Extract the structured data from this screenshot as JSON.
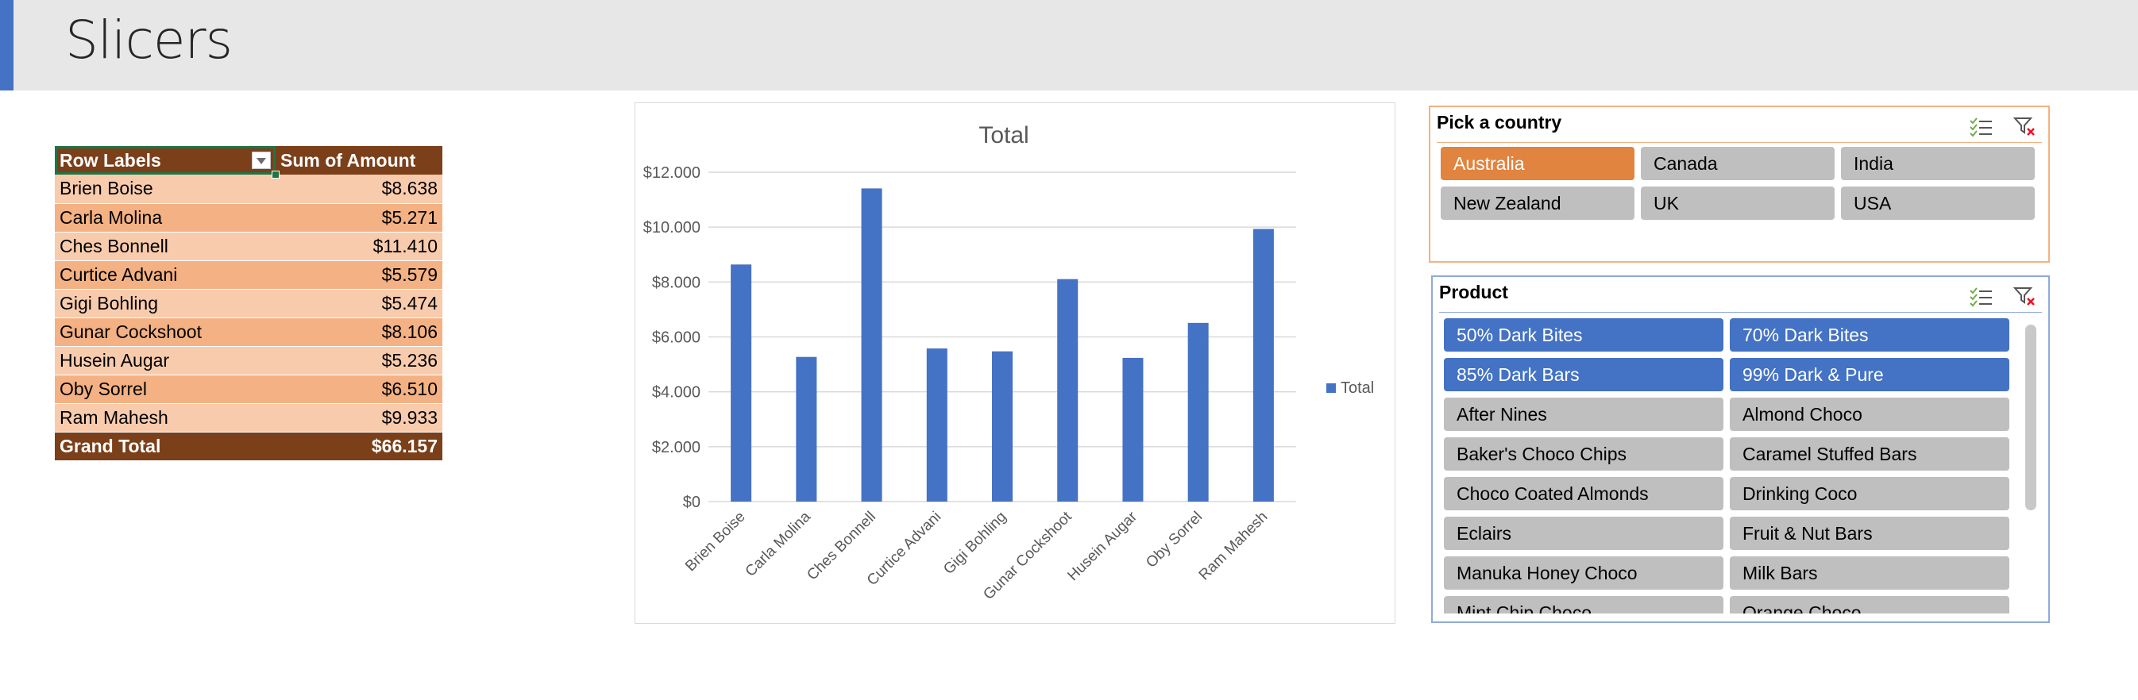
{
  "header": {
    "title": "Slicers",
    "accent_color": "#4472c4"
  },
  "pivot": {
    "header_row_labels": "Row Labels",
    "header_amount": "Sum of Amount",
    "rows": [
      {
        "label": "Brien Boise",
        "amount": "$8.638"
      },
      {
        "label": "Carla Molina",
        "amount": "$5.271"
      },
      {
        "label": "Ches Bonnell",
        "amount": "$11.410"
      },
      {
        "label": "Curtice Advani",
        "amount": "$5.579"
      },
      {
        "label": "Gigi Bohling",
        "amount": "$5.474"
      },
      {
        "label": "Gunar Cockshoot",
        "amount": "$8.106"
      },
      {
        "label": "Husein Augar",
        "amount": "$5.236"
      },
      {
        "label": "Oby Sorrel",
        "amount": "$6.510"
      },
      {
        "label": "Ram Mahesh",
        "amount": "$9.933"
      }
    ],
    "total_label": "Grand Total",
    "total_amount": "$66.157",
    "colors": {
      "header": "#7b3f1a",
      "row_light": "#f8cbad",
      "row_dark": "#f4b183"
    }
  },
  "chart_data": {
    "type": "bar",
    "title": "Total",
    "categories": [
      "Brien Boise",
      "Carla Molina",
      "Ches Bonnell",
      "Curtice Advani",
      "Gigi Bohling",
      "Gunar Cockshoot",
      "Husein Augar",
      "Oby Sorrel",
      "Ram Mahesh"
    ],
    "series": [
      {
        "name": "Total",
        "values": [
          8638,
          5271,
          11410,
          5579,
          5474,
          8106,
          5236,
          6510,
          9933
        ],
        "color": "#4472c4"
      }
    ],
    "ylim": [
      0,
      12000
    ],
    "yticks": [
      0,
      2000,
      4000,
      6000,
      8000,
      10000,
      12000
    ],
    "ytick_labels": [
      "$0",
      "$2.000",
      "$4.000",
      "$6.000",
      "$8.000",
      "$10.000",
      "$12.000"
    ],
    "grid": true,
    "legend": "right"
  },
  "slicers": {
    "country": {
      "title": "Pick a country",
      "items": [
        {
          "label": "Australia",
          "selected": true
        },
        {
          "label": "Canada",
          "selected": false
        },
        {
          "label": "India",
          "selected": false
        },
        {
          "label": "New Zealand",
          "selected": false
        },
        {
          "label": "UK",
          "selected": false
        },
        {
          "label": "USA",
          "selected": false
        }
      ],
      "icons": [
        "multi-select-icon",
        "clear-filter-icon"
      ]
    },
    "product": {
      "title": "Product",
      "items": [
        {
          "label": "50% Dark Bites",
          "selected": true
        },
        {
          "label": "70% Dark Bites",
          "selected": true
        },
        {
          "label": "85% Dark Bars",
          "selected": true
        },
        {
          "label": "99% Dark & Pure",
          "selected": true
        },
        {
          "label": "After Nines",
          "selected": false
        },
        {
          "label": "Almond Choco",
          "selected": false
        },
        {
          "label": "Baker's Choco Chips",
          "selected": false
        },
        {
          "label": "Caramel Stuffed Bars",
          "selected": false
        },
        {
          "label": "Choco Coated Almonds",
          "selected": false
        },
        {
          "label": "Drinking Coco",
          "selected": false
        },
        {
          "label": "Eclairs",
          "selected": false
        },
        {
          "label": "Fruit & Nut Bars",
          "selected": false
        },
        {
          "label": "Manuka Honey Choco",
          "selected": false
        },
        {
          "label": "Milk Bars",
          "selected": false
        },
        {
          "label": "Mint Chip Choco",
          "selected": false
        },
        {
          "label": "Orange Choco",
          "selected": false
        }
      ],
      "icons": [
        "multi-select-icon",
        "clear-filter-icon"
      ]
    }
  }
}
